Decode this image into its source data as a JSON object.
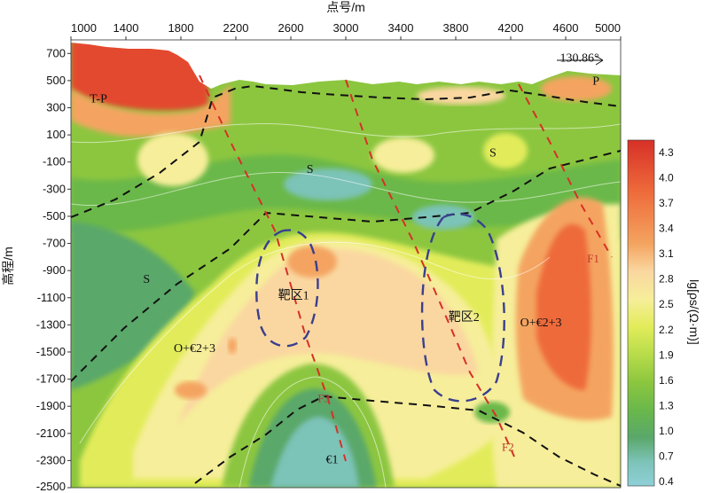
{
  "chart_data": {
    "type": "heatmap",
    "title": "",
    "xlabel": "点号/m",
    "ylabel": "高程/m",
    "xlim": [
      1000,
      5000
    ],
    "ylim": [
      -2500,
      800
    ],
    "x_ticks": [
      1000,
      1400,
      1800,
      2200,
      2600,
      3000,
      3400,
      3800,
      4200,
      4600,
      5000
    ],
    "y_ticks": [
      700,
      500,
      300,
      100,
      -100,
      -300,
      -500,
      -700,
      -900,
      -1100,
      -1300,
      -1500,
      -1700,
      -1900,
      -2100,
      -2300,
      -2500
    ],
    "colorbar": {
      "label": "lg[ρs/(Ω·m)]",
      "ticks": [
        "4.3",
        "4.0",
        "3.7",
        "3.4",
        "3.1",
        "2.8",
        "2.5",
        "2.2",
        "1.9",
        "1.6",
        "1.3",
        "1.0",
        "0.7",
        "0.4"
      ],
      "colors": [
        "#d73027",
        "#e34a2f",
        "#ec6a3a",
        "#f08a4b",
        "#f4a460",
        "#fad7a0",
        "#f6ee9a",
        "#e2ec5a",
        "#b8dc4a",
        "#8cc63f",
        "#6ab84a",
        "#5aa86a",
        "#7cc3b8",
        "#8fd0d8"
      ]
    },
    "annotations": [
      {
        "text": "T-P",
        "x": 1200,
        "y": 340
      },
      {
        "text": "P",
        "x": 4820,
        "y": 470
      },
      {
        "text": "S",
        "x": 2740,
        "y": -180
      },
      {
        "text": "S",
        "x": 4070,
        "y": -60
      },
      {
        "text": "S",
        "x": 1550,
        "y": -990
      },
      {
        "text": "靶区1",
        "x": 2620,
        "y": -1110
      },
      {
        "text": "靶区2",
        "x": 3860,
        "y": -1270
      },
      {
        "text": "O+€2+3",
        "x": 1900,
        "y": -1500
      },
      {
        "text": "O+€2+3",
        "x": 4420,
        "y": -1310
      },
      {
        "text": "€1",
        "x": 2900,
        "y": -2320
      },
      {
        "text": "F1",
        "x": 4800,
        "y": -840
      },
      {
        "text": "F2",
        "x": 4180,
        "y": -2230
      },
      {
        "text": "F3",
        "x": 2840,
        "y": -1870
      },
      {
        "text": "130.86°",
        "x": 4700,
        "y": 640
      }
    ]
  }
}
